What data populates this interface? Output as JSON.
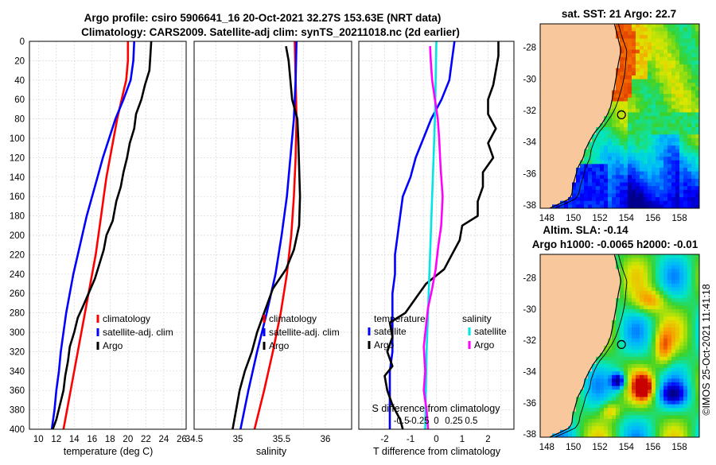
{
  "titles": {
    "line1": "Argo profile: csiro 5906641_16 20-Oct-2021 32.27S 153.63E (NRT data)",
    "line2": "Climatology: CARS2009. Satellite-adj clim: synTS_20211018.nc (2d earlier)",
    "map_sst": "sat. SST: 21 Argo: 22.7",
    "map_sla_1": "Altim. SLA: -0.14",
    "map_sla_2": "Argo h1000: -0.0065 h2000: -0.01",
    "credit": "©IMOS 25-Oct-2021 11:41:18"
  },
  "colors": {
    "climatology": "#ff0000",
    "satellite": "#0000ff",
    "argo": "#000000",
    "sal_sat": "#00e5e5",
    "sal_argo": "#ff00ff",
    "land": "#f8c79b"
  },
  "chart_data": [
    {
      "type": "line",
      "id": "temp",
      "xlabel": "temperature (deg C)",
      "ylabel": "",
      "xlim": [
        9,
        26.5
      ],
      "ylim": [
        0,
        400
      ],
      "xticks": [
        10,
        12,
        14,
        16,
        18,
        20,
        22,
        24,
        26
      ],
      "yticks": [
        0,
        20,
        40,
        60,
        80,
        100,
        120,
        140,
        160,
        180,
        200,
        220,
        240,
        260,
        280,
        300,
        320,
        340,
        360,
        380,
        400
      ],
      "legend": [
        "climatology",
        "satellite-adj. clim",
        "Argo"
      ],
      "series": [
        {
          "name": "climatology",
          "color": "#ff0000",
          "points": [
            [
              20.0,
              0
            ],
            [
              20.0,
              20
            ],
            [
              19.8,
              40
            ],
            [
              19.3,
              60
            ],
            [
              18.8,
              80
            ],
            [
              18.4,
              100
            ],
            [
              18.0,
              120
            ],
            [
              17.6,
              140
            ],
            [
              17.3,
              160
            ],
            [
              17.0,
              180
            ],
            [
              16.7,
              200
            ],
            [
              16.4,
              220
            ],
            [
              16.0,
              240
            ],
            [
              15.6,
              260
            ],
            [
              15.2,
              280
            ],
            [
              14.8,
              300
            ],
            [
              14.4,
              320
            ],
            [
              14.0,
              340
            ],
            [
              13.6,
              360
            ],
            [
              13.2,
              380
            ],
            [
              12.8,
              400
            ]
          ]
        },
        {
          "name": "satellite-adj. clim",
          "color": "#0000ff",
          "points": [
            [
              20.7,
              0
            ],
            [
              20.6,
              20
            ],
            [
              20.3,
              40
            ],
            [
              19.5,
              60
            ],
            [
              18.6,
              80
            ],
            [
              17.9,
              100
            ],
            [
              17.2,
              120
            ],
            [
              16.6,
              140
            ],
            [
              16.0,
              160
            ],
            [
              15.4,
              180
            ],
            [
              14.9,
              200
            ],
            [
              14.4,
              220
            ],
            [
              13.9,
              240
            ],
            [
              13.5,
              260
            ],
            [
              13.1,
              280
            ],
            [
              12.8,
              300
            ],
            [
              12.5,
              320
            ],
            [
              12.3,
              340
            ],
            [
              12.0,
              360
            ],
            [
              11.8,
              380
            ],
            [
              11.5,
              400
            ]
          ]
        },
        {
          "name": "Argo",
          "color": "#000000",
          "points": [
            [
              22.6,
              0
            ],
            [
              22.5,
              15
            ],
            [
              22.4,
              30
            ],
            [
              21.9,
              45
            ],
            [
              21.5,
              60
            ],
            [
              20.9,
              75
            ],
            [
              20.7,
              90
            ],
            [
              20.2,
              105
            ],
            [
              19.9,
              120
            ],
            [
              19.5,
              135
            ],
            [
              19.2,
              150
            ],
            [
              18.7,
              165
            ],
            [
              18.3,
              185
            ],
            [
              17.6,
              200
            ],
            [
              17.3,
              215
            ],
            [
              16.8,
              230
            ],
            [
              16.3,
              245
            ],
            [
              15.6,
              260
            ],
            [
              14.9,
              275
            ],
            [
              14.4,
              285
            ],
            [
              14.0,
              300
            ],
            [
              13.5,
              315
            ],
            [
              13.3,
              330
            ],
            [
              13.0,
              345
            ],
            [
              12.8,
              360
            ],
            [
              12.4,
              375
            ],
            [
              12.0,
              390
            ],
            [
              11.6,
              400
            ]
          ]
        }
      ]
    },
    {
      "type": "line",
      "id": "salinity",
      "xlabel": "salinity",
      "ylabel": "",
      "xlim": [
        34.5,
        36.3
      ],
      "ylim": [
        0,
        400
      ],
      "xticks": [
        34.5,
        35,
        35.5,
        36
      ],
      "xticklabels": [
        "34.5",
        "35",
        "35.5",
        "36"
      ],
      "legend": [
        "climatology",
        "satellite-adj. clim",
        "Argo"
      ],
      "series": [
        {
          "name": "climatology",
          "color": "#ff0000",
          "points": [
            [
              35.65,
              0
            ],
            [
              35.66,
              40
            ],
            [
              35.67,
              80
            ],
            [
              35.66,
              120
            ],
            [
              35.64,
              160
            ],
            [
              35.61,
              200
            ],
            [
              35.56,
              240
            ],
            [
              35.49,
              280
            ],
            [
              35.4,
              320
            ],
            [
              35.3,
              360
            ],
            [
              35.19,
              400
            ]
          ]
        },
        {
          "name": "satellite-adj. clim",
          "color": "#0000ff",
          "points": [
            [
              35.67,
              0
            ],
            [
              35.66,
              40
            ],
            [
              35.64,
              80
            ],
            [
              35.6,
              120
            ],
            [
              35.56,
              160
            ],
            [
              35.5,
              200
            ],
            [
              35.43,
              240
            ],
            [
              35.33,
              280
            ],
            [
              35.22,
              320
            ],
            [
              35.12,
              360
            ],
            [
              35.03,
              400
            ]
          ]
        },
        {
          "name": "Argo",
          "color": "#000000",
          "points": [
            [
              35.55,
              5
            ],
            [
              35.58,
              20
            ],
            [
              35.6,
              40
            ],
            [
              35.62,
              60
            ],
            [
              35.68,
              80
            ],
            [
              35.69,
              100
            ],
            [
              35.7,
              130
            ],
            [
              35.71,
              160
            ],
            [
              35.7,
              190
            ],
            [
              35.64,
              215
            ],
            [
              35.55,
              235
            ],
            [
              35.4,
              255
            ],
            [
              35.3,
              280
            ],
            [
              35.22,
              300
            ],
            [
              35.16,
              320
            ],
            [
              35.08,
              340
            ],
            [
              35.02,
              360
            ],
            [
              34.98,
              380
            ],
            [
              34.94,
              400
            ]
          ]
        }
      ]
    },
    {
      "type": "line",
      "id": "diff",
      "xlabel": "T difference from climatology",
      "xlabel_top": "S difference from climatology",
      "xlim": [
        -3,
        3
      ],
      "ylim": [
        0,
        400
      ],
      "xticks": [
        -2,
        -1,
        0,
        1,
        2
      ],
      "sxticks": [
        -0.5,
        -0.25,
        0,
        0.25,
        0.5
      ],
      "sxticklabels": [
        "-0.5",
        "-0.25",
        "0",
        "0.25",
        "0.5"
      ],
      "legend": {
        "temperature_title": "temperature",
        "salinity_title": "salinity",
        "t_satellite": "satellite",
        "t_argo": "Argo",
        "s_satellite": "satellite",
        "s_argo": "Argo"
      },
      "series": [
        {
          "name": "T satellite",
          "color": "#0000ff",
          "points": [
            [
              0.7,
              0
            ],
            [
              0.6,
              20
            ],
            [
              0.5,
              40
            ],
            [
              0.2,
              60
            ],
            [
              -0.2,
              80
            ],
            [
              -0.5,
              100
            ],
            [
              -0.8,
              120
            ],
            [
              -1.0,
              140
            ],
            [
              -1.3,
              160
            ],
            [
              -1.4,
              180
            ],
            [
              -1.5,
              200
            ],
            [
              -1.6,
              220
            ],
            [
              -1.6,
              240
            ],
            [
              -1.7,
              260
            ],
            [
              -1.7,
              280
            ],
            [
              -1.7,
              300
            ],
            [
              -1.7,
              320
            ],
            [
              -1.8,
              340
            ],
            [
              -1.8,
              360
            ],
            [
              -1.8,
              380
            ],
            [
              -1.8,
              400
            ]
          ]
        },
        {
          "name": "T Argo",
          "color": "#000000",
          "points": [
            [
              2.4,
              0
            ],
            [
              2.4,
              15
            ],
            [
              2.3,
              30
            ],
            [
              2.2,
              45
            ],
            [
              2.0,
              60
            ],
            [
              2.0,
              75
            ],
            [
              2.3,
              90
            ],
            [
              2.0,
              105
            ],
            [
              2.2,
              120
            ],
            [
              1.8,
              135
            ],
            [
              1.8,
              150
            ],
            [
              1.6,
              165
            ],
            [
              1.6,
              180
            ],
            [
              1.0,
              190
            ],
            [
              0.9,
              205
            ],
            [
              0.6,
              220
            ],
            [
              0.3,
              235
            ],
            [
              -0.4,
              250
            ],
            [
              -0.8,
              265
            ],
            [
              -1.2,
              280
            ],
            [
              -1.8,
              290
            ],
            [
              -1.7,
              305
            ],
            [
              -1.9,
              320
            ],
            [
              -1.7,
              335
            ],
            [
              -2.0,
              345
            ],
            [
              -1.9,
              360
            ],
            [
              -1.7,
              375
            ],
            [
              -1.4,
              390
            ],
            [
              -1.3,
              400
            ]
          ]
        },
        {
          "name": "S satellite",
          "color": "#00e5e5",
          "scale": "salinity",
          "points": [
            [
              0.0,
              0
            ],
            [
              -0.01,
              40
            ],
            [
              -0.02,
              80
            ],
            [
              -0.04,
              120
            ],
            [
              -0.06,
              160
            ],
            [
              -0.08,
              200
            ],
            [
              -0.1,
              240
            ],
            [
              -0.12,
              280
            ],
            [
              -0.14,
              320
            ],
            [
              -0.15,
              360
            ],
            [
              -0.16,
              400
            ]
          ]
        },
        {
          "name": "S Argo",
          "color": "#ff00ff",
          "scale": "salinity",
          "points": [
            [
              -0.09,
              5
            ],
            [
              -0.08,
              20
            ],
            [
              -0.06,
              40
            ],
            [
              -0.02,
              60
            ],
            [
              0.02,
              80
            ],
            [
              0.04,
              100
            ],
            [
              0.06,
              130
            ],
            [
              0.09,
              160
            ],
            [
              0.07,
              190
            ],
            [
              0.03,
              210
            ],
            [
              -0.01,
              235
            ],
            [
              -0.06,
              255
            ],
            [
              -0.12,
              275
            ],
            [
              -0.15,
              295
            ],
            [
              -0.18,
              315
            ],
            [
              -0.16,
              340
            ],
            [
              -0.18,
              360
            ],
            [
              -0.14,
              380
            ],
            [
              -0.12,
              400
            ]
          ]
        }
      ]
    },
    {
      "type": "heatmap",
      "id": "map_sst",
      "title": "sat. SST: 21 Argo: 22.7",
      "xlim": [
        147.5,
        159.5
      ],
      "ylim": [
        -38.2,
        -26.5
      ],
      "xticks": [
        148,
        150,
        152,
        154,
        156,
        158
      ],
      "yticks": [
        -28,
        -30,
        -32,
        -34,
        -36,
        -38
      ],
      "argo_position": [
        153.63,
        -32.27
      ]
    },
    {
      "type": "heatmap",
      "id": "map_sla",
      "title": "Altim. SLA: -0.14",
      "xlim": [
        147.5,
        159.5
      ],
      "ylim": [
        -38.2,
        -26.5
      ],
      "xticks": [
        148,
        150,
        152,
        154,
        156,
        158
      ],
      "yticks": [
        -28,
        -30,
        -32,
        -34,
        -36,
        -38
      ],
      "argo_position": [
        153.63,
        -32.27
      ]
    }
  ]
}
